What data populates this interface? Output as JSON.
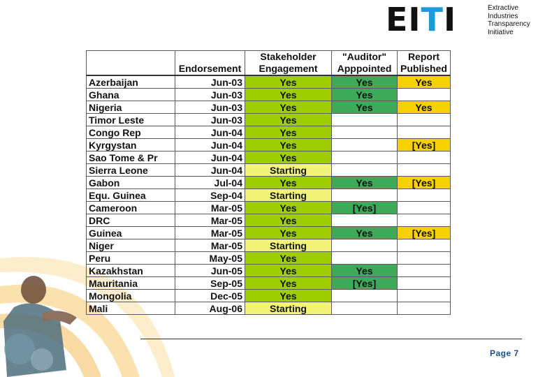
{
  "logo": {
    "mark_left": "EI",
    "mark_accent": "T",
    "mark_right": "I",
    "lines": [
      "Extractive",
      "Industries",
      "Transparency",
      "Initiative"
    ]
  },
  "colors": {
    "stakeholder_yes": "#9fce00",
    "stakeholder_starting": "#f3f57a",
    "auditor": "#3daa5a",
    "report": "#f7d200"
  },
  "table": {
    "headers": {
      "endorsement": "Endorsement",
      "stakeholder_line1": "Stakeholder",
      "stakeholder_line2": "Engagement",
      "auditor_line1": "\"Auditor\"",
      "auditor_line2": "Apppointed",
      "report_line1": "Report",
      "report_line2": "Published"
    },
    "rows": [
      {
        "country": "Azerbaijan",
        "endorsement": "Jun-03",
        "stakeholder": "Yes",
        "auditor": "Yes",
        "report": "Yes"
      },
      {
        "country": "Ghana",
        "endorsement": "Jun-03",
        "stakeholder": "Yes",
        "auditor": "Yes",
        "report": ""
      },
      {
        "country": "Nigeria",
        "endorsement": "Jun-03",
        "stakeholder": "Yes",
        "auditor": "Yes",
        "report": "Yes"
      },
      {
        "country": "Timor Leste",
        "endorsement": "Jun-03",
        "stakeholder": "Yes",
        "auditor": "",
        "report": ""
      },
      {
        "country": "Congo Rep",
        "endorsement": "Jun-04",
        "stakeholder": "Yes",
        "auditor": "",
        "report": ""
      },
      {
        "country": "Kyrgystan",
        "endorsement": "Jun-04",
        "stakeholder": "Yes",
        "auditor": "",
        "report": "[Yes]"
      },
      {
        "country": "Sao Tome & Pr",
        "endorsement": "Jun-04",
        "stakeholder": "Yes",
        "auditor": "",
        "report": ""
      },
      {
        "country": "Sierra Leone",
        "endorsement": "Jun-04",
        "stakeholder": "Starting",
        "auditor": "",
        "report": ""
      },
      {
        "country": "Gabon",
        "endorsement": "Jul-04",
        "stakeholder": "Yes",
        "auditor": "Yes",
        "report": "[Yes]"
      },
      {
        "country": "Equ. Guinea",
        "endorsement": "Sep-04",
        "stakeholder": "Starting",
        "auditor": "",
        "report": ""
      },
      {
        "country": "Cameroon",
        "endorsement": "Mar-05",
        "stakeholder": "Yes",
        "auditor": "[Yes]",
        "report": ""
      },
      {
        "country": "DRC",
        "endorsement": "Mar-05",
        "stakeholder": "Yes",
        "auditor": "",
        "report": ""
      },
      {
        "country": "Guinea",
        "endorsement": "Mar-05",
        "stakeholder": "Yes",
        "auditor": "Yes",
        "report": "[Yes]"
      },
      {
        "country": "Niger",
        "endorsement": "Mar-05",
        "stakeholder": "Starting",
        "auditor": "",
        "report": ""
      },
      {
        "country": "Peru",
        "endorsement": "May-05",
        "stakeholder": "Yes",
        "auditor": "",
        "report": ""
      },
      {
        "country": "Kazakhstan",
        "endorsement": "Jun-05",
        "stakeholder": "Yes",
        "auditor": "Yes",
        "report": ""
      },
      {
        "country": "Mauritania",
        "endorsement": "Sep-05",
        "stakeholder": "Yes",
        "auditor": "[Yes]",
        "report": ""
      },
      {
        "country": "Mongolia",
        "endorsement": "Dec-05",
        "stakeholder": "Yes",
        "auditor": "",
        "report": ""
      },
      {
        "country": "Mali",
        "endorsement": "Aug-06",
        "stakeholder": "Starting",
        "auditor": "",
        "report": ""
      }
    ]
  },
  "footer": {
    "page_label": "Page 7"
  }
}
